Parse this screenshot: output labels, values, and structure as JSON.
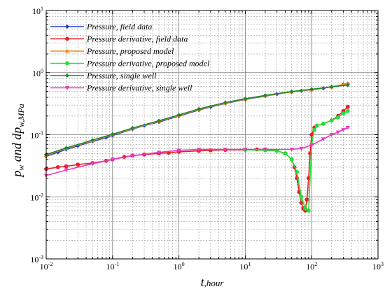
{
  "chart_data": {
    "type": "line",
    "title": "",
    "x_scale": "log",
    "y_scale": "log",
    "xlim": [
      0.01,
      1000
    ],
    "ylim": [
      0.001,
      10
    ],
    "grid": true,
    "legend_placement": "top-left",
    "x_ticks": [
      {
        "value": 0.01,
        "base": "10",
        "exp": "-2"
      },
      {
        "value": 0.1,
        "base": "10",
        "exp": "-1"
      },
      {
        "value": 1,
        "base": "10",
        "exp": "0"
      },
      {
        "value": 10,
        "base": "10",
        "exp": "1"
      },
      {
        "value": 100,
        "base": "10",
        "exp": "2"
      },
      {
        "value": 1000,
        "base": "10",
        "exp": "3"
      }
    ],
    "y_ticks": [
      {
        "value": 0.001,
        "base": "10",
        "exp": "-3"
      },
      {
        "value": 0.01,
        "base": "10",
        "exp": "-2"
      },
      {
        "value": 0.1,
        "base": "10",
        "exp": "-1"
      },
      {
        "value": 1,
        "base": "10",
        "exp": "0"
      },
      {
        "value": 10,
        "base": "10",
        "exp": "1"
      }
    ],
    "xlabel": {
      "main": "t",
      "sub": ",hour"
    },
    "ylabel": {
      "main": "p",
      "sub1": "w",
      "mid": " and dp",
      "sub2": "w,MPa"
    },
    "series": [
      {
        "name": "Pressure, field data",
        "color": "#1f3fd0",
        "marker": "diamond",
        "x": [
          0.01,
          0.015,
          0.02,
          0.03,
          0.05,
          0.08,
          0.1,
          0.2,
          0.3,
          0.5,
          1,
          2,
          3,
          5,
          10,
          20,
          30,
          50,
          70,
          100,
          150,
          200,
          300,
          350
        ],
        "y": [
          0.045,
          0.052,
          0.058,
          0.066,
          0.078,
          0.09,
          0.097,
          0.123,
          0.14,
          0.16,
          0.2,
          0.25,
          0.28,
          0.32,
          0.37,
          0.42,
          0.45,
          0.49,
          0.51,
          0.53,
          0.56,
          0.59,
          0.64,
          0.66
        ]
      },
      {
        "name": "Pressure derivative, field data",
        "color": "#e8202a",
        "marker": "circle",
        "x": [
          0.01,
          0.015,
          0.02,
          0.03,
          0.05,
          0.08,
          0.1,
          0.15,
          0.2,
          0.3,
          0.5,
          0.7,
          1,
          2,
          3,
          5,
          10,
          15,
          20,
          30,
          40,
          50,
          55,
          60,
          65,
          70,
          75,
          80,
          85,
          90,
          95,
          100,
          110,
          120,
          150,
          200,
          250,
          300,
          350
        ],
        "y": [
          0.028,
          0.03,
          0.031,
          0.033,
          0.035,
          0.038,
          0.04,
          0.044,
          0.046,
          0.048,
          0.05,
          0.051,
          0.053,
          0.055,
          0.056,
          0.057,
          0.057,
          0.058,
          0.058,
          0.055,
          0.05,
          0.04,
          0.03,
          0.02,
          0.012,
          0.008,
          0.0065,
          0.006,
          0.009,
          0.02,
          0.05,
          0.1,
          0.13,
          0.14,
          0.15,
          0.17,
          0.2,
          0.24,
          0.28
        ]
      },
      {
        "name": "Pressure, proposed model",
        "color": "#f58a1f",
        "marker": "triangle",
        "x": [
          0.01,
          0.02,
          0.05,
          0.1,
          0.2,
          0.5,
          1,
          2,
          5,
          10,
          20,
          50,
          100,
          200,
          350
        ],
        "y": [
          0.047,
          0.06,
          0.08,
          0.1,
          0.125,
          0.165,
          0.205,
          0.255,
          0.325,
          0.375,
          0.425,
          0.49,
          0.535,
          0.59,
          0.67
        ]
      },
      {
        "name": "Pressure derivative, proposed model",
        "color": "#22e03a",
        "marker": "circle",
        "x": [
          10,
          20,
          30,
          40,
          50,
          60,
          70,
          80,
          90,
          100,
          110,
          120,
          150,
          200,
          250,
          300,
          350
        ],
        "y": [
          0.057,
          0.056,
          0.055,
          0.05,
          0.04,
          0.025,
          0.01,
          0.0065,
          0.006,
          0.07,
          0.12,
          0.14,
          0.15,
          0.17,
          0.19,
          0.22,
          0.24
        ]
      },
      {
        "name": "Pressure, single well",
        "color": "#1e8a2a",
        "marker": "diamond",
        "x": [
          0.01,
          0.02,
          0.05,
          0.1,
          0.2,
          0.5,
          1,
          2,
          5,
          10,
          20,
          50,
          100,
          200,
          350
        ],
        "y": [
          0.048,
          0.061,
          0.082,
          0.102,
          0.128,
          0.168,
          0.208,
          0.26,
          0.33,
          0.38,
          0.43,
          0.495,
          0.54,
          0.59,
          0.63
        ]
      },
      {
        "name": "Pressure derivative, single well",
        "color": "#e83cc0",
        "marker": "triangle-down",
        "x": [
          0.01,
          0.02,
          0.05,
          0.1,
          0.2,
          0.5,
          1,
          2,
          5,
          10,
          20,
          50,
          70,
          100,
          150,
          200,
          250,
          300,
          350
        ],
        "y": [
          0.022,
          0.027,
          0.034,
          0.04,
          0.046,
          0.052,
          0.056,
          0.058,
          0.058,
          0.058,
          0.058,
          0.058,
          0.06,
          0.068,
          0.085,
          0.1,
          0.11,
          0.12,
          0.13
        ]
      }
    ]
  }
}
